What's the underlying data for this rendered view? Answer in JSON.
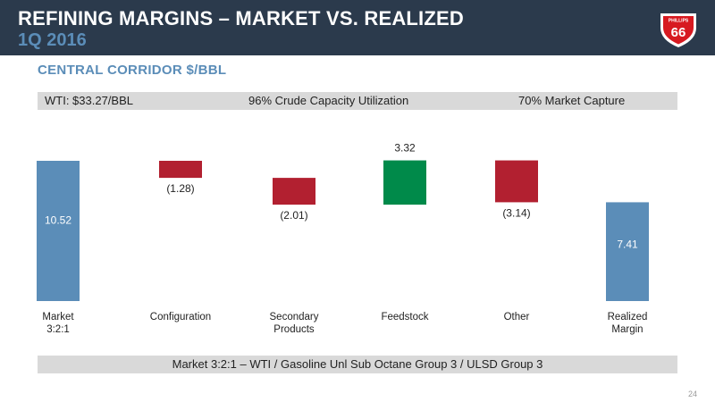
{
  "header": {
    "title": "REFINING MARGINS – MARKET VS. REALIZED",
    "subtitle": "1Q 2016",
    "logo_text_top": "PHILLIPS",
    "logo_text_main": "66"
  },
  "section_title": "CENTRAL CORRIDOR $/BBL",
  "info_bar": {
    "wti": "WTI: $33.27/BBL",
    "utilization": "96% Crude Capacity Utilization",
    "capture": "70% Market Capture"
  },
  "footer_note": "Market 3:2:1 – WTI / Gasoline Unl Sub Octane Group 3 / ULSD Group 3",
  "page_number": "24",
  "colors": {
    "header_bg": "#2b3a4c",
    "accent_blue": "#5b8db8",
    "bar_total": "#5b8db8",
    "bar_negative": "#b22030",
    "bar_positive": "#008a4a",
    "bar_bg": "#d9d9d9"
  },
  "chart_data": {
    "type": "bar",
    "subtype": "waterfall",
    "categories": [
      "Market\n3:2:1",
      "Configuration",
      "Secondary\nProducts",
      "Feedstock",
      "Other",
      "Realized\nMargin"
    ],
    "values": [
      10.52,
      -1.28,
      -2.01,
      3.32,
      -3.14,
      7.41
    ],
    "value_labels": [
      "10.52",
      "(1.28)",
      "(2.01)",
      "3.32",
      "(3.14)",
      "7.41"
    ],
    "kinds": [
      "total",
      "negative",
      "negative",
      "positive",
      "negative",
      "total"
    ],
    "ylim": [
      0,
      10.52
    ],
    "grid": false,
    "legend": "none"
  }
}
